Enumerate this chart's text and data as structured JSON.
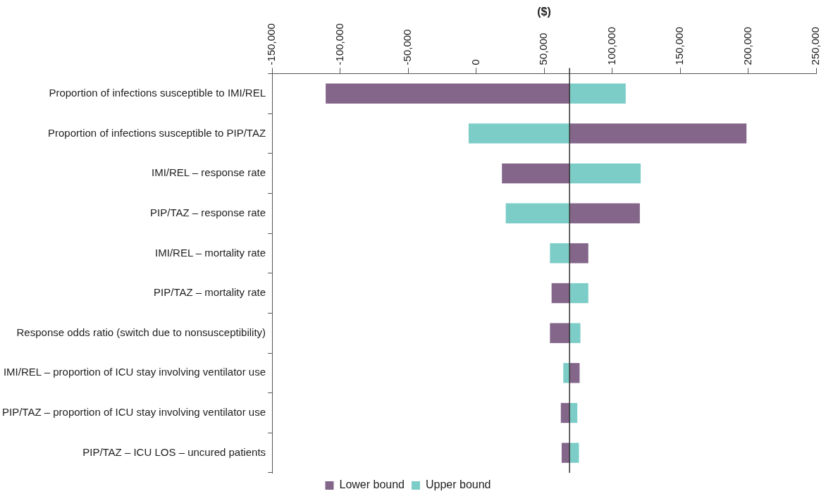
{
  "chart_data": {
    "type": "bar",
    "orientation": "horizontal",
    "xlabel": "($)",
    "categories": [
      "Proportion of infections susceptible to IMI/REL",
      "Proportion of infections susceptible to PIP/TAZ",
      "IMI/REL – response rate",
      "PIP/TAZ – response rate",
      "IMI/REL – mortality rate",
      "PIP/TAZ – mortality rate",
      "Response odds ratio (switch due to nonsusceptibility)",
      "IMI/REL – proportion of ICU stay involving ventilator use",
      "PIP/TAZ – proportion of ICU stay involving ventilator use",
      "PIP/TAZ – ICU LOS – uncured patients"
    ],
    "series": [
      {
        "name": "Lower bound",
        "color": "#83668a",
        "base": [
          68700,
          68700,
          68700,
          68700,
          68700,
          68700,
          68700,
          68700,
          68700,
          68700
        ],
        "values": [
          -179300,
          130100,
          -49700,
          51700,
          13800,
          -13200,
          -14400,
          7400,
          -6400,
          -5800
        ]
      },
      {
        "name": "Upper bound",
        "color": "#7ccdc8",
        "base": [
          68700,
          68700,
          68700,
          68700,
          68700,
          68700,
          68700,
          68700,
          68700,
          68700
        ],
        "values": [
          41300,
          -74200,
          52300,
          -46900,
          -14400,
          13800,
          8000,
          -4600,
          5700,
          6900
        ]
      }
    ],
    "xlim": [
      -150000,
      250000
    ],
    "xticks": [
      {
        "value": -150000,
        "label": "-150,000"
      },
      {
        "value": -100000,
        "label": "-100,000"
      },
      {
        "value": -50000,
        "label": "-50,000"
      },
      0,
      {
        "value": 50000,
        "label": "50,000"
      },
      {
        "value": 100000,
        "label": "100,000"
      },
      {
        "value": 150000,
        "label": "150,000"
      },
      {
        "value": 200000,
        "label": "200,000"
      },
      {
        "value": 250000,
        "label": "250,000"
      }
    ],
    "ref_lines": [
      {
        "axis": "x",
        "value": 68700,
        "color": "#333333"
      }
    ],
    "grid": false,
    "legend": "bottom"
  }
}
